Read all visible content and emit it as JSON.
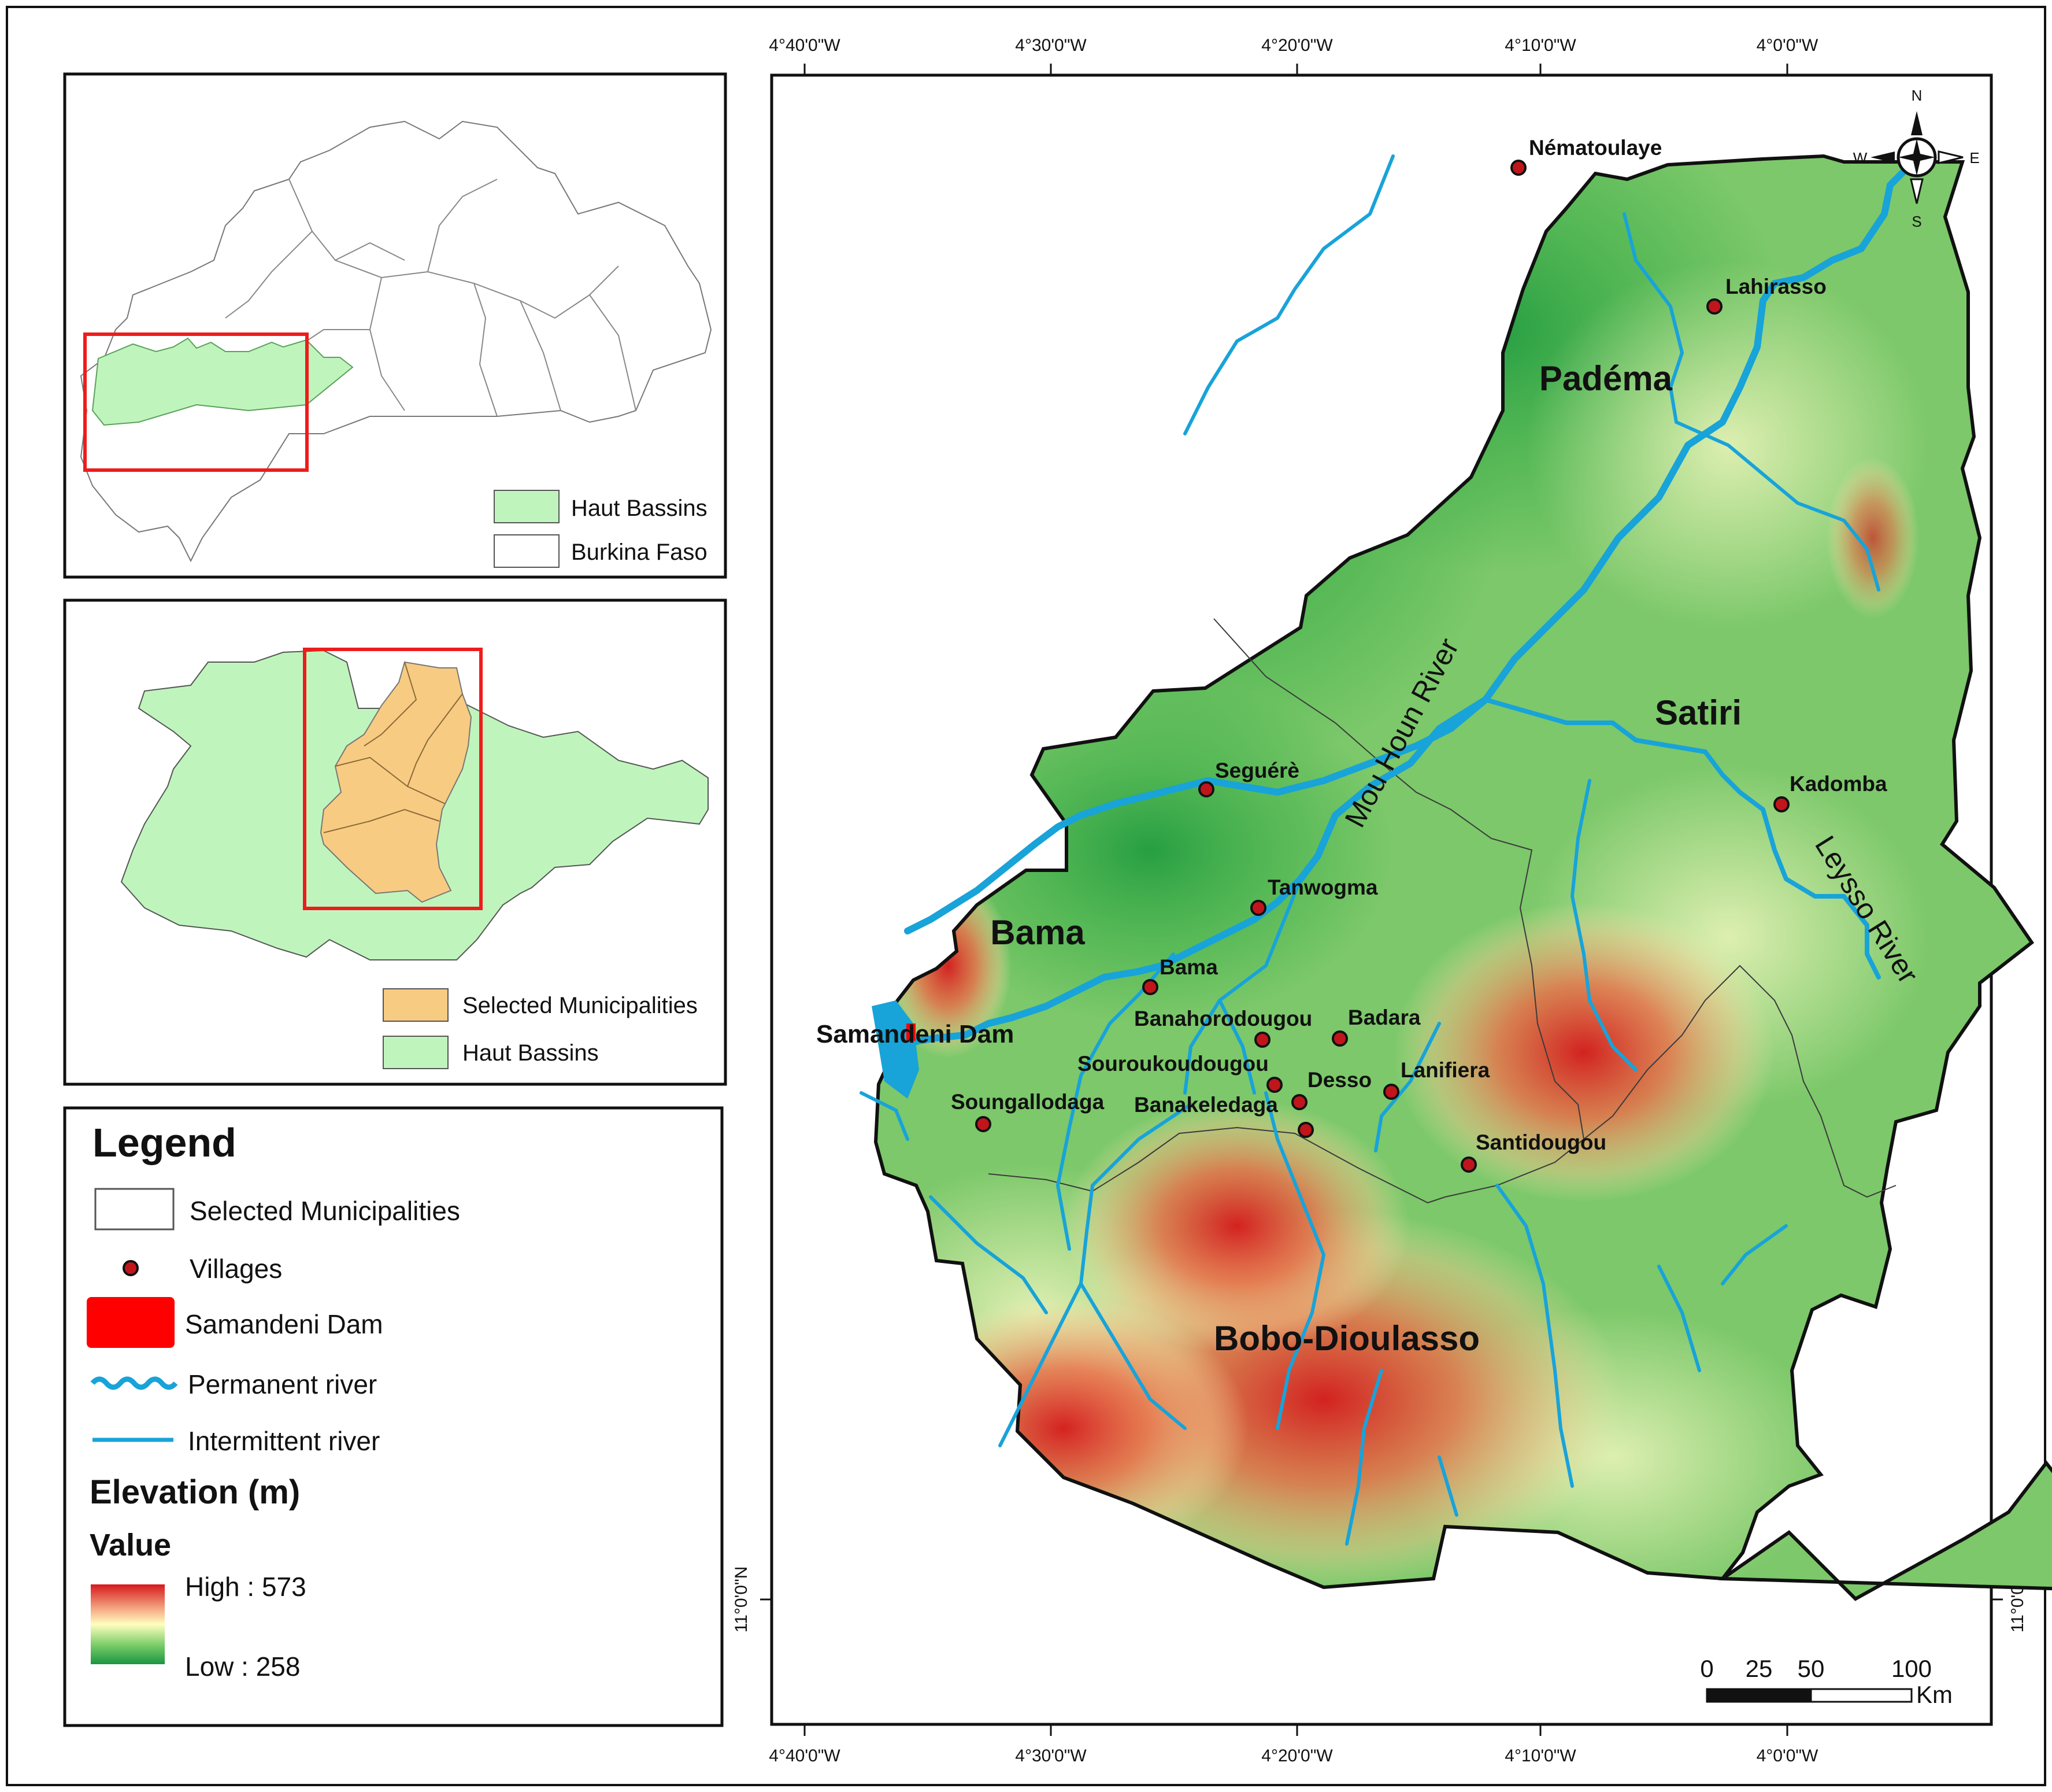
{
  "coords": {
    "lon_ticks": [
      "4°40'0\"W",
      "4°30'0\"W",
      "4°20'0\"W",
      "4°10'0\"W",
      "4°0'0\"W"
    ],
    "lat_ticks": [
      "11°0'0\"N"
    ]
  },
  "inset_bf": {
    "legend": [
      {
        "label": "Haut Bassins",
        "color": "#bff5bc"
      },
      {
        "label": "Burkina Faso",
        "color": "#ffffff"
      }
    ]
  },
  "inset_hb": {
    "legend": [
      {
        "label": "Selected Municipalities",
        "color": "#f8cb82"
      },
      {
        "label": "Haut Bassins",
        "color": "#bff5bc"
      }
    ]
  },
  "legend": {
    "title": "Legend",
    "items": {
      "municipalities": "Selected Municipalities",
      "villages": "Villages",
      "dam": "Samandeni Dam",
      "permanent": "Permanent river",
      "intermittent": "Intermittent river"
    },
    "elevation_title": "Elevation (m)",
    "value_title": "Value",
    "high": "High : 573",
    "low": "Low : 258"
  },
  "map": {
    "municipalities": [
      "Padéma",
      "Satiri",
      "Bama",
      "Bobo-Dioulasso"
    ],
    "villages": [
      "Nématoulaye",
      "Lahirasso",
      "Kadomba",
      "Seguérè",
      "Tanwogma",
      "Bama",
      "Banahorodougou",
      "Badara",
      "Souroukoudougou",
      "Desso",
      "Lanifiera",
      "Banakeledaga",
      "Soungallodaga",
      "Santidougou"
    ],
    "dam_label": "Samandeni Dam",
    "rivers": [
      "Mou Houn River",
      "Leysso River"
    ],
    "compass": {
      "n": "N",
      "s": "S",
      "e": "E",
      "w": "W"
    },
    "scale": {
      "ticks": [
        "0",
        "25",
        "50",
        "100"
      ],
      "unit": "Km"
    }
  },
  "colors": {
    "village": "#c0161b",
    "river": "#18a3d9",
    "dam": "#ff0000",
    "frame_red": "#ee1c1c",
    "elev_high": "#d7191c",
    "elev_low": "#1a9641"
  }
}
